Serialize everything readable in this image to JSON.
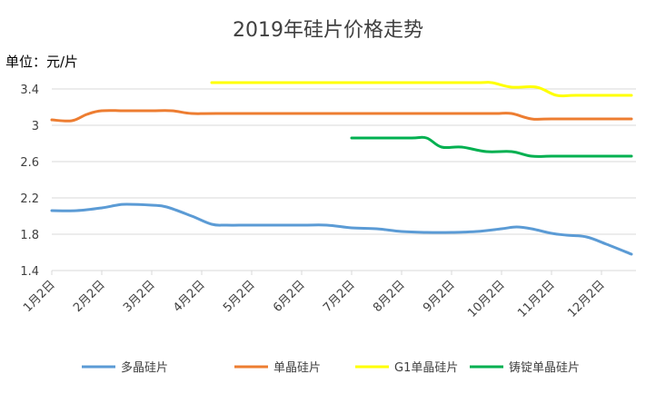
{
  "chart_data": {
    "type": "line",
    "title": "2019年硅片价格走势",
    "ylabel": "单位：元/片",
    "xlabel": "",
    "ylim": [
      1.4,
      3.6
    ],
    "yticks": [
      "1.4",
      "1.8",
      "2.2",
      "2.6",
      "3",
      "3.4"
    ],
    "categories": [
      "1月2日",
      "2月2日",
      "3月2日",
      "4月2日",
      "5月2日",
      "6月2日",
      "7月2日",
      "8月2日",
      "9月2日",
      "10月2日",
      "11月2日",
      "12月2日"
    ],
    "grid": true,
    "legend_position": "bottom",
    "series": [
      {
        "name": "多晶硅片",
        "color": "#5b9bd5",
        "points": [
          [
            0,
            2.06
          ],
          [
            0.5,
            2.06
          ],
          [
            1.0,
            2.09
          ],
          [
            1.3,
            2.12
          ],
          [
            1.5,
            2.13
          ],
          [
            2.0,
            2.12
          ],
          [
            2.3,
            2.1
          ],
          [
            2.8,
            2.0
          ],
          [
            3.2,
            1.91
          ],
          [
            3.5,
            1.9
          ],
          [
            4.0,
            1.9
          ],
          [
            5.0,
            1.9
          ],
          [
            5.5,
            1.9
          ],
          [
            6.0,
            1.87
          ],
          [
            6.5,
            1.86
          ],
          [
            7.0,
            1.83
          ],
          [
            7.5,
            1.82
          ],
          [
            8.0,
            1.82
          ],
          [
            8.5,
            1.83
          ],
          [
            9.0,
            1.86
          ],
          [
            9.3,
            1.88
          ],
          [
            9.6,
            1.86
          ],
          [
            10.0,
            1.81
          ],
          [
            10.3,
            1.79
          ],
          [
            10.7,
            1.77
          ],
          [
            11.1,
            1.69
          ],
          [
            11.6,
            1.58
          ]
        ]
      },
      {
        "name": "单晶硅片",
        "color": "#ed7d31",
        "points": [
          [
            0,
            3.06
          ],
          [
            0.4,
            3.05
          ],
          [
            0.7,
            3.12
          ],
          [
            1.0,
            3.16
          ],
          [
            1.5,
            3.16
          ],
          [
            2.0,
            3.16
          ],
          [
            2.4,
            3.16
          ],
          [
            2.8,
            3.13
          ],
          [
            3.3,
            3.13
          ],
          [
            5.0,
            3.13
          ],
          [
            7.0,
            3.13
          ],
          [
            8.5,
            3.13
          ],
          [
            8.9,
            3.13
          ],
          [
            9.2,
            3.13
          ],
          [
            9.6,
            3.07
          ],
          [
            10.0,
            3.07
          ],
          [
            11.6,
            3.07
          ]
        ]
      },
      {
        "name": "G1单晶硅片",
        "color": "#ffff00",
        "points": [
          [
            3.2,
            3.47
          ],
          [
            5.0,
            3.47
          ],
          [
            7.0,
            3.47
          ],
          [
            8.5,
            3.47
          ],
          [
            8.8,
            3.47
          ],
          [
            9.2,
            3.42
          ],
          [
            9.7,
            3.42
          ],
          [
            10.1,
            3.33
          ],
          [
            10.5,
            3.33
          ],
          [
            11.6,
            3.33
          ]
        ]
      },
      {
        "name": "铸锭单晶硅片",
        "color": "#00b050",
        "points": [
          [
            6.0,
            2.86
          ],
          [
            6.5,
            2.86
          ],
          [
            7.2,
            2.86
          ],
          [
            7.5,
            2.86
          ],
          [
            7.8,
            2.76
          ],
          [
            8.2,
            2.76
          ],
          [
            8.7,
            2.71
          ],
          [
            9.2,
            2.71
          ],
          [
            9.6,
            2.66
          ],
          [
            10.0,
            2.66
          ],
          [
            10.5,
            2.66
          ],
          [
            11.6,
            2.66
          ]
        ]
      }
    ]
  }
}
